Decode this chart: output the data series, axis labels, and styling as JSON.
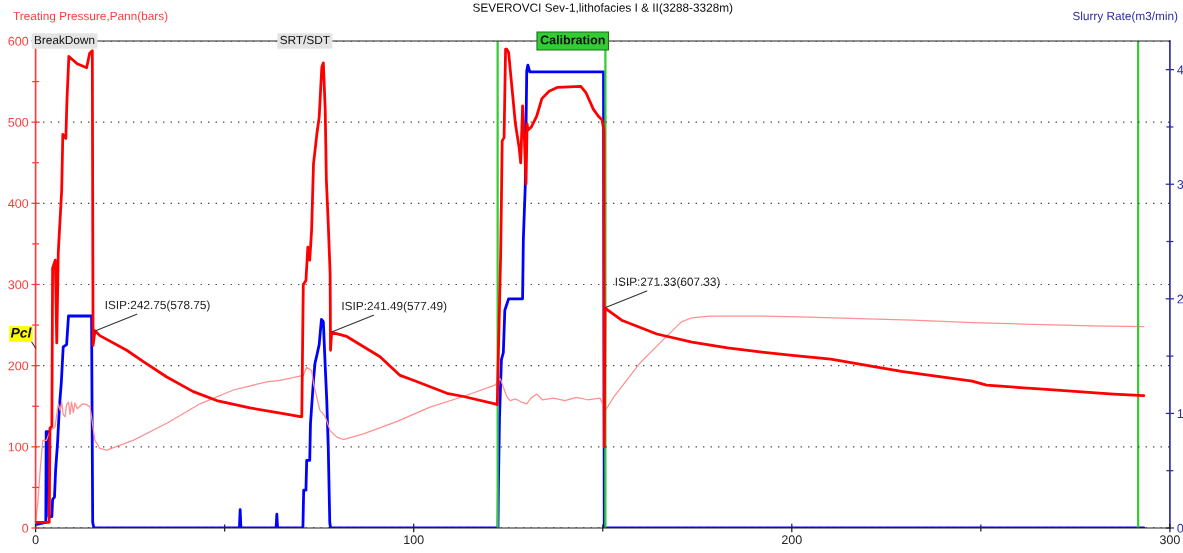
{
  "chart_data": {
    "type": "line",
    "title": "SEVEROVCI Sev-1,lithofacies I & II(3288-3328m)",
    "ylabel": "Treating Pressure,Pann(bars)",
    "y2label": "Slurry Rate(m3/min)",
    "xlim": [
      0,
      300
    ],
    "xticks": [
      0,
      {
        "value": 50,
        "label": null
      },
      100,
      {
        "value": 150,
        "label": null
      },
      200,
      {
        "value": 250,
        "label": null
      },
      300
    ],
    "ylim": [
      0,
      600
    ],
    "yticks": [
      0,
      {
        "value": 50,
        "label": null
      },
      100,
      {
        "value": 150,
        "label": null
      },
      200,
      {
        "value": 250,
        "label": null
      },
      300,
      {
        "value": 350,
        "label": null
      },
      400,
      {
        "value": 450,
        "label": null
      },
      500,
      {
        "value": 550,
        "label": null
      },
      600
    ],
    "y2lim": [
      0,
      4.25
    ],
    "y2ticks": [
      0,
      {
        "value": 0.5,
        "label": null
      },
      1,
      {
        "value": 1.5,
        "label": null
      },
      2,
      {
        "value": 2.5,
        "label": null
      },
      3,
      {
        "value": 3.5,
        "label": null
      },
      4
    ],
    "grid": "y",
    "series": [
      {
        "color": "#ff0000",
        "x": [
          0,
          3.6,
          3.8,
          4.3,
          4.5,
          5.2,
          5.6,
          6.0,
          6.5,
          6.9,
          7.2,
          8.0,
          8.3,
          8.8,
          11.0,
          13.5,
          14.3,
          15.0,
          15.2,
          15.7,
          17.0,
          24.1,
          28.5,
          34.7,
          41.7,
          47.9,
          56.7,
          65.5,
          70.4,
          70.8,
          71.5,
          72.0,
          72.5,
          73.0,
          73.5,
          73.9,
          74.4,
          75.0,
          75.7,
          76.1,
          76.6,
          76.9,
          77.4,
          77.9,
          78.0,
          78.3,
          82.3,
          91.1,
          96.4,
          99.9,
          108.8,
          113.2,
          121.5,
          122.1,
          122.4,
          123.0,
          123.2,
          123.4,
          123.9,
          124.3,
          124.6,
          125.1,
          126.0,
          126.9,
          127.9,
          128.3,
          128.8,
          129.3,
          129.7,
          130.0,
          130.2,
          131.1,
          132.5,
          133.9,
          135.8,
          138.1,
          144.2,
          145.6,
          147.5,
          148.9,
          149.8,
          150.3,
          150.4,
          150.6,
          155.0,
          164.3,
          173.6,
          183.0,
          191.6,
          199.5,
          210.3,
          229.0,
          247.7,
          251.5,
          266.4,
          285.1,
          293.1
        ],
        "values": [
          7,
          7,
          123,
          125,
          320,
          330,
          228,
          340,
          382,
          416,
          485,
          480,
          528,
          581,
          572,
          567,
          585,
          588,
          225,
          243,
          237,
          219,
          205,
          186,
          168,
          157,
          148,
          141,
          137,
          300,
          305,
          346,
          330,
          367,
          449,
          465,
          486,
          506,
          568,
          573,
          515,
          429,
          375,
          313,
          219,
          241,
          236,
          211,
          188,
          182,
          166,
          162,
          153,
          152,
          215,
          337,
          403,
          477,
          481,
          590,
          590,
          586,
          542,
          498,
          468,
          450,
          520,
          477,
          424,
          498,
          490,
          494,
          507,
          529,
          538,
          543,
          544,
          536,
          516,
          507,
          503,
          490,
          100,
          271,
          256,
          239,
          229,
          222,
          217,
          213,
          208,
          193,
          181,
          176,
          171,
          165,
          163
        ]
      },
      {
        "color": "#0000ff",
        "axis": "y2",
        "x": [
          0,
          2.7,
          2.8,
          3.4,
          3.5,
          4.3,
          4.5,
          5.0,
          5.3,
          5.8,
          6.3,
          6.8,
          7.3,
          8.2,
          8.7,
          14.8,
          15.1,
          15.4,
          53.9,
          54.1,
          54.3,
          63.6,
          63.8,
          64.0,
          70.7,
          70.9,
          71.5,
          71.7,
          72.5,
          72.7,
          73.5,
          73.9,
          74.4,
          75.0,
          75.6,
          76.1,
          76.6,
          77.0,
          77.4,
          77.8,
          78.0,
          122.3,
          122.4,
          122.7,
          123.2,
          123.7,
          124.1,
          125.1,
          128.8,
          129.0,
          129.5,
          129.9,
          130.2,
          130.7,
          150.2,
          150.4,
          293.1
        ],
        "values": [
          0.03,
          0.05,
          0.84,
          0.84,
          0.1,
          0.1,
          0.25,
          0.27,
          0.51,
          0.74,
          1.06,
          1.27,
          1.58,
          1.6,
          1.85,
          1.85,
          0.05,
          0,
          0,
          0.16,
          0,
          0,
          0.12,
          0,
          0,
          0.33,
          0.33,
          0.59,
          0.59,
          0.91,
          1.29,
          1.44,
          1.51,
          1.6,
          1.82,
          1.8,
          1.41,
          1.12,
          0.71,
          0.05,
          0,
          0,
          0.35,
          0.97,
          1.47,
          1.53,
          1.9,
          2.0,
          2.0,
          2.52,
          2.98,
          3.99,
          4.04,
          3.98,
          3.98,
          0,
          0
        ]
      },
      {
        "color": "#ff9090",
        "x": [
          0,
          0.6,
          1.2,
          1.9,
          2.9,
          3.8,
          5.1,
          6.0,
          6.5,
          6.9,
          7.3,
          7.8,
          8.2,
          8.7,
          9.1,
          9.5,
          10.0,
          10.4,
          11.0,
          11.7,
          12.5,
          13.5,
          14.4,
          14.8,
          15.3,
          15.7,
          17.0,
          18.8,
          25.8,
          34.7,
          43.5,
          52.3,
          61.1,
          64.7,
          70.8,
          71.7,
          73.0,
          73.5,
          75.2,
          76.0,
          76.6,
          77.9,
          79.7,
          81.4,
          86.7,
          95.5,
          104.3,
          113.1,
          121.5,
          122.9,
          124.6,
          125.5,
          127.0,
          128.5,
          129.9,
          131.0,
          132.6,
          134.0,
          137.0,
          140.0,
          143.0,
          146.0,
          149.3,
          150.7,
          153.0,
          159.6,
          166.2,
          170.8,
          173.6,
          178.3,
          191.6,
          201.9,
          217.8,
          231.9,
          247.7,
          263.6,
          279.5,
          293.1
        ],
        "values": [
          7,
          32,
          71,
          108,
          108,
          120,
          124,
          153,
          145,
          155,
          140,
          137,
          152,
          155,
          140,
          155,
          142,
          154,
          147,
          150,
          153,
          152,
          149,
          137,
          120,
          108,
          98,
          96,
          108,
          129,
          153,
          170,
          180,
          182,
          188,
          198,
          194,
          178,
          145,
          141,
          137,
          120,
          112,
          109,
          116,
          131,
          149,
          162,
          176,
          184,
          162,
          157,
          159,
          155,
          153,
          160,
          165,
          158,
          160,
          157,
          161,
          158,
          160,
          145,
          162,
          202,
          233,
          254,
          259,
          261,
          261,
          260,
          258,
          256,
          253,
          251,
          249,
          248
        ]
      }
    ],
    "ref_lines": [
      {
        "axis": "x",
        "value": 122.2,
        "color": "#33cc33"
      },
      {
        "axis": "x",
        "value": 150.7,
        "color": "#33cc33",
        "label": "Calibration"
      },
      {
        "axis": "x",
        "value": 291.6,
        "color": "#33cc33"
      }
    ],
    "annotations": [
      "BreakDown",
      "SRT/SDT",
      {
        "text": "ISIP:242.75(578.75)",
        "x": 15.7,
        "y": 242.75
      },
      {
        "text": "ISIP:241.49(577.49)",
        "x": 78.3,
        "y": 241.49
      },
      {
        "text": "ISIP:271.33(607.33)",
        "x": 150.6,
        "y": 271.33
      },
      "Pcl"
    ]
  }
}
